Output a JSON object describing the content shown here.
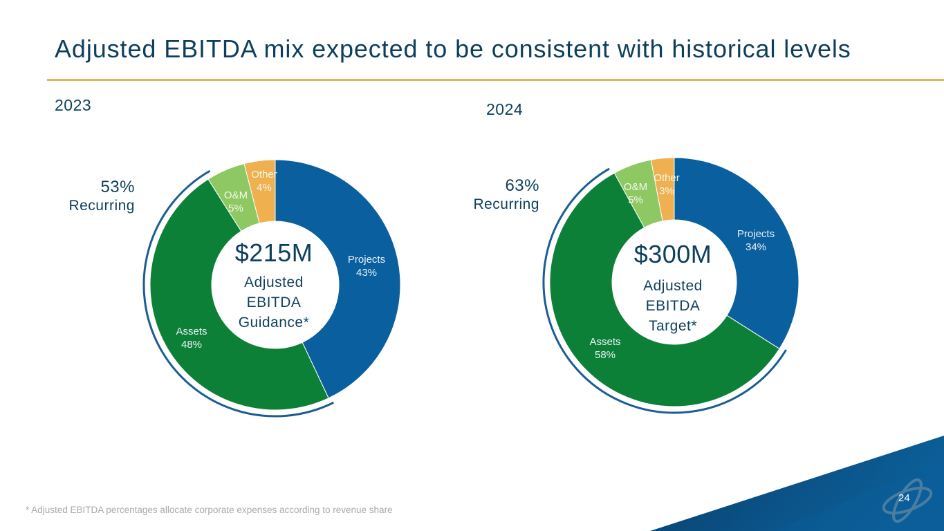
{
  "slide": {
    "title": "Adjusted EBITDA mix expected to be consistent with historical levels",
    "footnote": "* Adjusted EBITDA percentages allocate corporate expenses according to revenue share",
    "page_number": "24",
    "colors": {
      "accent_rule": "#e8b35c",
      "title_text": "#0d3f5c",
      "projects": "#0a5f9e",
      "assets": "#0d8038",
      "om": "#8ec862",
      "other": "#efb04f",
      "recurring_arc": "#1a5d94"
    }
  },
  "chart_data": [
    {
      "type": "pie",
      "variant": "donut",
      "title": "2023",
      "center_value": "$215M",
      "center_caption": [
        "Adjusted",
        "EBITDA",
        "Guidance*"
      ],
      "recurring_pct": "53%",
      "recurring_label": "Recurring",
      "slices": [
        {
          "name": "Projects",
          "value": 43,
          "label": "43%"
        },
        {
          "name": "Assets",
          "value": 48,
          "label": "48%"
        },
        {
          "name": "O&M",
          "value": 5,
          "label": "5%"
        },
        {
          "name": "Other",
          "value": 4,
          "label": "4%"
        }
      ]
    },
    {
      "type": "pie",
      "variant": "donut",
      "title": "2024",
      "center_value": "$300M",
      "center_caption": [
        "Adjusted",
        "EBITDA",
        "Target*"
      ],
      "recurring_pct": "63%",
      "recurring_label": "Recurring",
      "slices": [
        {
          "name": "Projects",
          "value": 34,
          "label": "34%"
        },
        {
          "name": "Assets",
          "value": 58,
          "label": "58%"
        },
        {
          "name": "O&M",
          "value": 5,
          "label": "5%"
        },
        {
          "name": "Other",
          "value": 3,
          "label": "3%"
        }
      ]
    }
  ]
}
